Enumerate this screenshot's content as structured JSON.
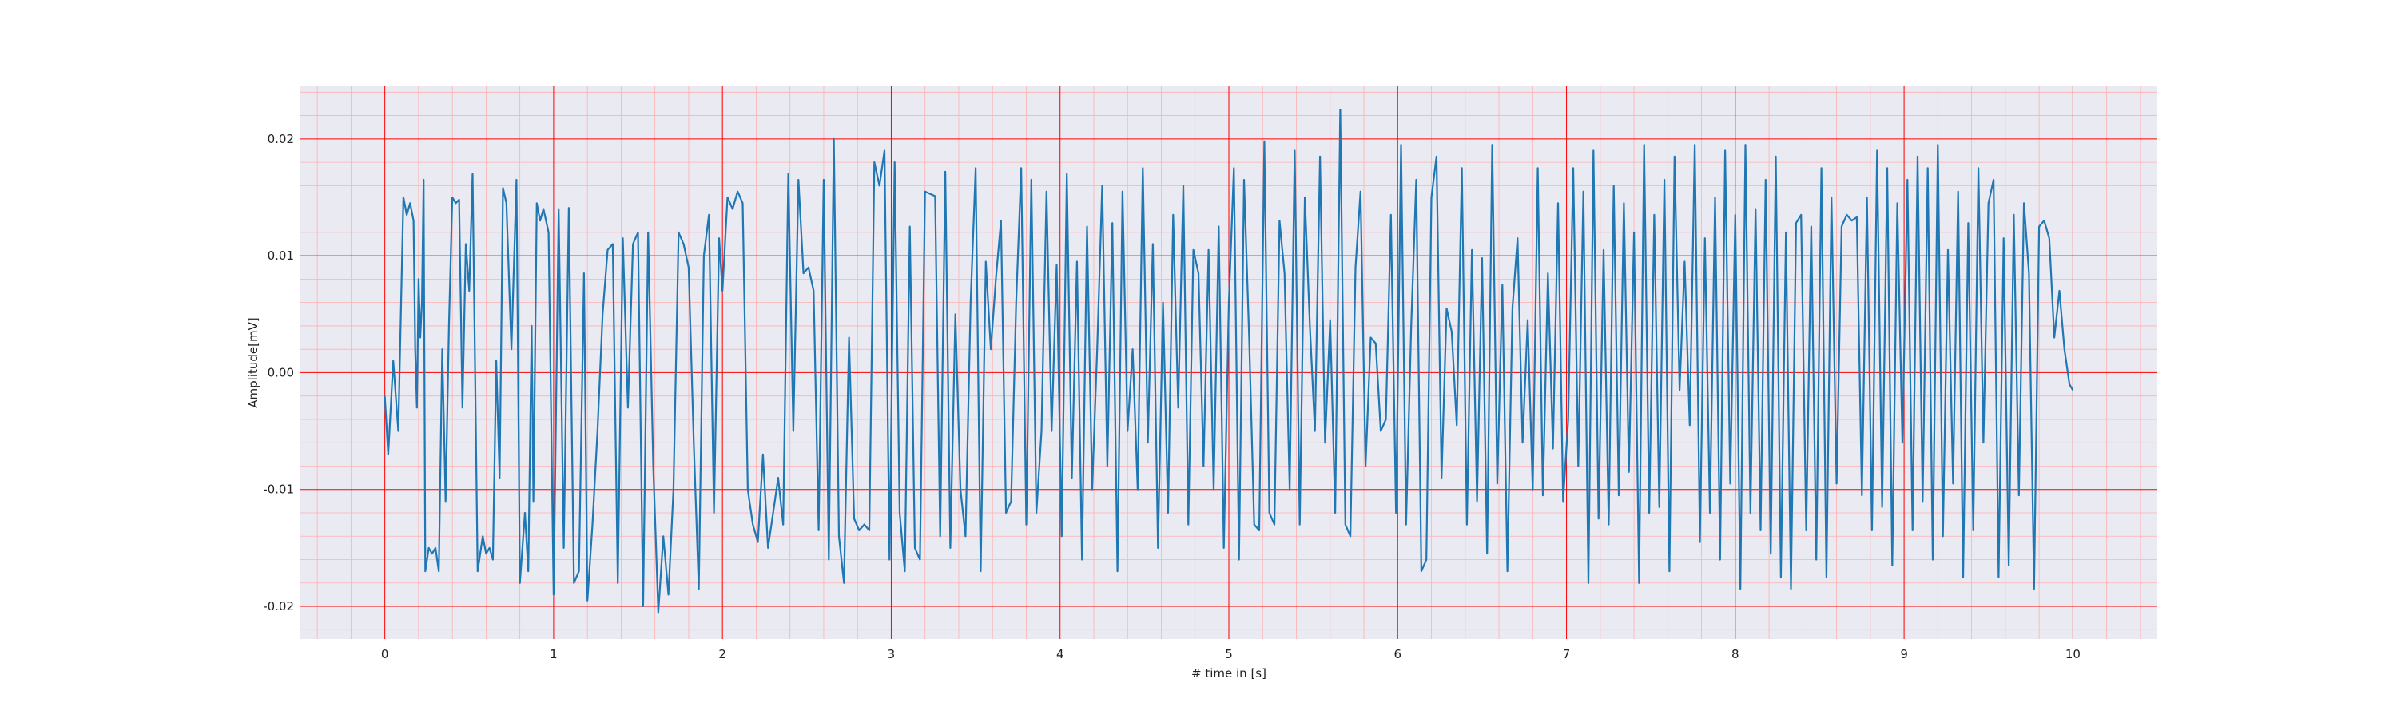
{
  "chart_data": {
    "type": "line",
    "title": "",
    "xlabel": "# time in [s]",
    "ylabel": "Amplitude[mV]",
    "xlim": [
      -0.5,
      10.5
    ],
    "ylim": [
      -0.0228,
      0.0245
    ],
    "x_ticks": [
      0,
      1,
      2,
      3,
      4,
      5,
      6,
      7,
      8,
      9,
      10
    ],
    "x_tick_labels": [
      "0",
      "1",
      "2",
      "3",
      "4",
      "5",
      "6",
      "7",
      "8",
      "9",
      "10"
    ],
    "y_ticks": [
      -0.02,
      -0.01,
      0.0,
      0.01,
      0.02
    ],
    "y_tick_labels": [
      "-0.02",
      "-0.01",
      "0.00",
      "0.01",
      "0.02"
    ],
    "grid": true,
    "minor_grid": true,
    "colors": {
      "plot_background": "#eaeaf2",
      "major_grid": "#ff0000",
      "minor_grid": "#ffb0b0",
      "line": "#1f77b4"
    },
    "series": [
      {
        "x": [
          0.0,
          0.02,
          0.05,
          0.08,
          0.11,
          0.13,
          0.15,
          0.17,
          0.18,
          0.19,
          0.2,
          0.21,
          0.22,
          0.23,
          0.24,
          0.26,
          0.28,
          0.3,
          0.32,
          0.34,
          0.36,
          0.38,
          0.4,
          0.42,
          0.44,
          0.46,
          0.48,
          0.5,
          0.52,
          0.55,
          0.58,
          0.6,
          0.62,
          0.64,
          0.66,
          0.68,
          0.7,
          0.72,
          0.75,
          0.78,
          0.8,
          0.83,
          0.85,
          0.87,
          0.88,
          0.9,
          0.92,
          0.94,
          0.97,
          1.0,
          1.03,
          1.06,
          1.09,
          1.12,
          1.15,
          1.18,
          1.2,
          1.23,
          1.26,
          1.29,
          1.32,
          1.35,
          1.38,
          1.41,
          1.44,
          1.47,
          1.5,
          1.53,
          1.56,
          1.59,
          1.62,
          1.65,
          1.68,
          1.71,
          1.74,
          1.77,
          1.8,
          1.83,
          1.86,
          1.89,
          1.92,
          1.95,
          1.98,
          2.0,
          2.03,
          2.06,
          2.09,
          2.12,
          2.15,
          2.18,
          2.21,
          2.24,
          2.27,
          2.3,
          2.33,
          2.36,
          2.39,
          2.42,
          2.45,
          2.48,
          2.51,
          2.54,
          2.57,
          2.6,
          2.63,
          2.66,
          2.69,
          2.72,
          2.75,
          2.78,
          2.81,
          2.84,
          2.87,
          2.9,
          2.93,
          2.96,
          2.99,
          3.02,
          3.05,
          3.08,
          3.11,
          3.14,
          3.17,
          3.2,
          3.23,
          3.26,
          3.29,
          3.32,
          3.35,
          3.38,
          3.41,
          3.44,
          3.47,
          3.5,
          3.53,
          3.56,
          3.59,
          3.62,
          3.65,
          3.68,
          3.71,
          3.74,
          3.77,
          3.8,
          3.83,
          3.86,
          3.89,
          3.92,
          3.95,
          3.98,
          4.01,
          4.04,
          4.07,
          4.1,
          4.13,
          4.16,
          4.19,
          4.22,
          4.25,
          4.28,
          4.31,
          4.34,
          4.37,
          4.4,
          4.43,
          4.46,
          4.49,
          4.52,
          4.55,
          4.58,
          4.61,
          4.64,
          4.67,
          4.7,
          4.73,
          4.76,
          4.79,
          4.82,
          4.85,
          4.88,
          4.91,
          4.94,
          4.97,
          5.0,
          5.03,
          5.06,
          5.09,
          5.12,
          5.15,
          5.18,
          5.21,
          5.24,
          5.27,
          5.3,
          5.33,
          5.36,
          5.39,
          5.42,
          5.45,
          5.48,
          5.51,
          5.54,
          5.57,
          5.6,
          5.63,
          5.66,
          5.69,
          5.72,
          5.75,
          5.78,
          5.81,
          5.84,
          5.87,
          5.9,
          5.93,
          5.96,
          5.99,
          6.02,
          6.05,
          6.08,
          6.11,
          6.14,
          6.17,
          6.2,
          6.23,
          6.26,
          6.29,
          6.32,
          6.35,
          6.38,
          6.41,
          6.44,
          6.47,
          6.5,
          6.53,
          6.56,
          6.59,
          6.62,
          6.65,
          6.68,
          6.71,
          6.74,
          6.77,
          6.8,
          6.83,
          6.86,
          6.89,
          6.92,
          6.95,
          6.98,
          7.01,
          7.04,
          7.07,
          7.1,
          7.13,
          7.16,
          7.19,
          7.22,
          7.25,
          7.28,
          7.31,
          7.34,
          7.37,
          7.4,
          7.43,
          7.46,
          7.49,
          7.52,
          7.55,
          7.58,
          7.61,
          7.64,
          7.67,
          7.7,
          7.73,
          7.76,
          7.79,
          7.82,
          7.85,
          7.88,
          7.91,
          7.94,
          7.97,
          8.0,
          8.03,
          8.06,
          8.09,
          8.12,
          8.15,
          8.18,
          8.21,
          8.24,
          8.27,
          8.3,
          8.33,
          8.36,
          8.39,
          8.42,
          8.45,
          8.48,
          8.51,
          8.54,
          8.57,
          8.6,
          8.63,
          8.66,
          8.69,
          8.72,
          8.75,
          8.78,
          8.81,
          8.84,
          8.87,
          8.9,
          8.93,
          8.96,
          8.99,
          9.02,
          9.05,
          9.08,
          9.11,
          9.14,
          9.17,
          9.2,
          9.23,
          9.26,
          9.29,
          9.32,
          9.35,
          9.38,
          9.41,
          9.44,
          9.47,
          9.5,
          9.53,
          9.56,
          9.59,
          9.62,
          9.65,
          9.68,
          9.71,
          9.74,
          9.77,
          9.8,
          9.83,
          9.86,
          9.89,
          9.92,
          9.95,
          9.98,
          10.0
        ],
        "y": [
          -0.002,
          -0.007,
          0.001,
          -0.005,
          0.015,
          0.0135,
          0.0145,
          0.013,
          0.002,
          -0.003,
          0.008,
          0.003,
          0.006,
          0.0165,
          -0.017,
          -0.015,
          -0.0155,
          -0.015,
          -0.017,
          0.002,
          -0.011,
          0.004,
          0.015,
          0.0145,
          0.0148,
          -0.003,
          0.011,
          0.007,
          0.017,
          -0.017,
          -0.014,
          -0.0155,
          -0.015,
          -0.016,
          0.001,
          -0.009,
          0.0158,
          0.0145,
          0.002,
          0.0165,
          -0.018,
          -0.012,
          -0.017,
          0.004,
          -0.011,
          0.0145,
          0.013,
          0.014,
          0.012,
          -0.019,
          0.014,
          -0.015,
          0.0141,
          -0.018,
          -0.017,
          0.0085,
          -0.0195,
          -0.013,
          -0.005,
          0.005,
          0.0105,
          0.011,
          -0.018,
          0.0115,
          -0.003,
          0.011,
          0.012,
          -0.02,
          0.012,
          -0.008,
          -0.0205,
          -0.014,
          -0.019,
          -0.01,
          0.012,
          0.011,
          0.009,
          -0.006,
          -0.0185,
          0.01,
          0.0135,
          -0.012,
          0.0115,
          0.007,
          0.015,
          0.014,
          0.0155,
          0.0145,
          -0.01,
          -0.013,
          -0.0145,
          -0.007,
          -0.015,
          -0.012,
          -0.009,
          -0.013,
          0.017,
          -0.005,
          0.0165,
          0.0085,
          0.009,
          0.007,
          -0.0135,
          0.0165,
          -0.016,
          0.02,
          -0.014,
          -0.018,
          0.003,
          -0.0125,
          -0.0135,
          -0.013,
          -0.0135,
          0.018,
          0.016,
          0.019,
          -0.016,
          0.018,
          -0.012,
          -0.017,
          0.0125,
          -0.015,
          -0.016,
          0.0155,
          0.0153,
          0.0151,
          -0.014,
          0.0172,
          -0.015,
          0.005,
          -0.01,
          -0.014,
          0.006,
          0.0175,
          -0.017,
          0.0095,
          0.002,
          0.008,
          0.013,
          -0.012,
          -0.011,
          0.006,
          0.0175,
          -0.013,
          0.0165,
          -0.012,
          -0.005,
          0.0155,
          -0.005,
          0.0092,
          -0.014,
          0.017,
          -0.009,
          0.0095,
          -0.016,
          0.0125,
          -0.01,
          0.002,
          0.016,
          -0.008,
          0.0128,
          -0.017,
          0.0155,
          -0.005,
          0.002,
          -0.01,
          0.0175,
          -0.006,
          0.011,
          -0.015,
          0.006,
          -0.012,
          0.0135,
          -0.003,
          0.016,
          -0.013,
          0.0105,
          0.0085,
          -0.008,
          0.0105,
          -0.01,
          0.0125,
          -0.015,
          0.006,
          0.0175,
          -0.016,
          0.0165,
          0.003,
          -0.013,
          -0.0135,
          0.0198,
          -0.012,
          -0.013,
          0.013,
          0.0085,
          -0.01,
          0.019,
          -0.013,
          0.015,
          0.004,
          -0.005,
          0.0185,
          -0.006,
          0.0045,
          -0.012,
          0.0225,
          -0.013,
          -0.014,
          0.009,
          0.0155,
          -0.008,
          0.003,
          0.0025,
          -0.005,
          -0.004,
          0.0135,
          -0.012,
          0.0195,
          -0.013,
          0.004,
          0.0165,
          -0.017,
          -0.016,
          0.015,
          0.0185,
          -0.009,
          0.0055,
          0.0035,
          -0.0045,
          0.0175,
          -0.013,
          0.0105,
          -0.011,
          0.0098,
          -0.0155,
          0.0195,
          -0.0095,
          0.0075,
          -0.017,
          0.0055,
          0.0115,
          -0.006,
          0.0045,
          -0.01,
          0.0175,
          -0.0105,
          0.0085,
          -0.0065,
          0.0145,
          -0.011,
          -0.004,
          0.0175,
          -0.008,
          0.0155,
          -0.018,
          0.019,
          -0.0125,
          0.0105,
          -0.013,
          0.016,
          -0.0105,
          0.0145,
          -0.0085,
          0.012,
          -0.018,
          0.0195,
          -0.012,
          0.0135,
          -0.0115,
          0.0165,
          -0.017,
          0.0185,
          -0.0015,
          0.0095,
          -0.0045,
          0.0195,
          -0.0145,
          0.0115,
          -0.012,
          0.015,
          -0.016,
          0.019,
          -0.0095,
          0.0135,
          -0.0185,
          0.0195,
          -0.012,
          0.014,
          -0.0135,
          0.0165,
          -0.0155,
          0.0185,
          -0.0175,
          0.012,
          -0.0185,
          0.0128,
          0.0135,
          -0.0135,
          0.0125,
          -0.016,
          0.0175,
          -0.0175,
          0.015,
          -0.0095,
          0.0125,
          0.0135,
          0.013,
          0.0133,
          -0.0105,
          0.015,
          -0.0135,
          0.019,
          -0.0115,
          0.0175,
          -0.0165,
          0.0145,
          -0.006,
          0.0165,
          -0.0135,
          0.0185,
          -0.011,
          0.0175,
          -0.016,
          0.0195,
          -0.014,
          0.0105,
          -0.0095,
          0.0155,
          -0.0175,
          0.0128,
          -0.0135,
          0.0175,
          -0.006,
          0.0145,
          0.0165,
          -0.0175,
          0.0115,
          -0.0165,
          0.0135,
          -0.0105,
          0.0145,
          0.0085,
          -0.0185,
          0.0125,
          0.013,
          0.0115,
          0.003,
          0.007,
          0.002,
          -0.001,
          -0.0015
        ]
      }
    ]
  }
}
